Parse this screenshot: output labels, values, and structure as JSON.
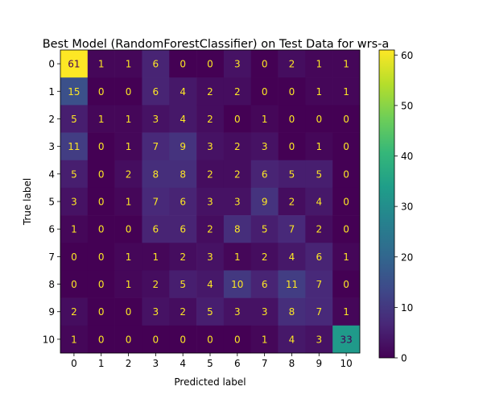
{
  "chart_data": {
    "type": "heatmap",
    "title": "Best Model (RandomForestClassifier) on Test Data for wrs-a",
    "xlabel": "Predicted label",
    "ylabel": "True label",
    "x_categories": [
      "0",
      "1",
      "2",
      "3",
      "4",
      "5",
      "6",
      "7",
      "8",
      "9",
      "10"
    ],
    "y_categories": [
      "0",
      "1",
      "2",
      "3",
      "4",
      "5",
      "6",
      "7",
      "8",
      "9",
      "10"
    ],
    "matrix": [
      [
        61,
        1,
        1,
        6,
        0,
        0,
        3,
        0,
        2,
        1,
        1
      ],
      [
        15,
        0,
        0,
        6,
        4,
        2,
        2,
        0,
        0,
        1,
        1
      ],
      [
        5,
        1,
        1,
        3,
        4,
        2,
        0,
        1,
        0,
        0,
        0
      ],
      [
        11,
        0,
        1,
        7,
        9,
        3,
        2,
        3,
        0,
        1,
        0
      ],
      [
        5,
        0,
        2,
        8,
        8,
        2,
        2,
        6,
        5,
        5,
        0
      ],
      [
        3,
        0,
        1,
        7,
        6,
        3,
        3,
        9,
        2,
        4,
        0
      ],
      [
        1,
        0,
        0,
        6,
        6,
        2,
        8,
        5,
        7,
        2,
        0
      ],
      [
        0,
        0,
        1,
        1,
        2,
        3,
        1,
        2,
        4,
        6,
        1
      ],
      [
        0,
        0,
        1,
        2,
        5,
        4,
        10,
        6,
        11,
        7,
        0
      ],
      [
        2,
        0,
        0,
        3,
        2,
        5,
        3,
        3,
        8,
        7,
        1
      ],
      [
        1,
        0,
        0,
        0,
        0,
        0,
        0,
        1,
        4,
        3,
        33
      ]
    ],
    "colormap": "viridis",
    "value_range": [
      0,
      61
    ],
    "colorbar_ticks": [
      0,
      10,
      20,
      30,
      40,
      50,
      60
    ],
    "grid": false
  }
}
